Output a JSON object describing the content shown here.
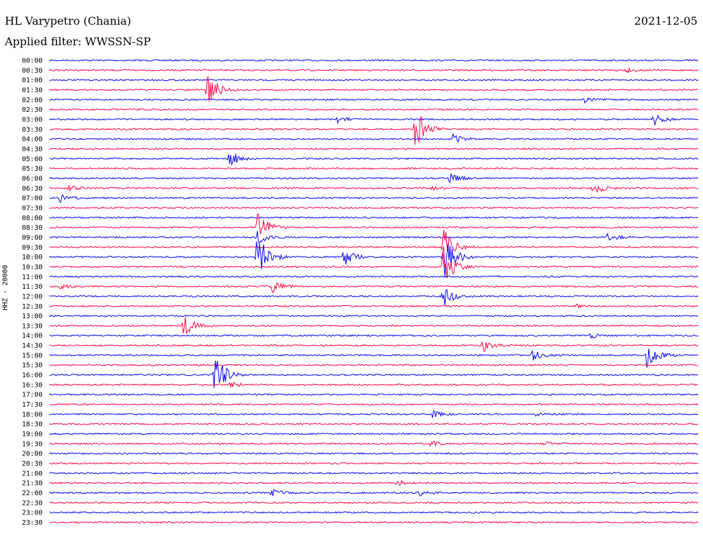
{
  "header": {
    "station": "HL Varypetro (Chania)",
    "date": "2021-12-05",
    "filter": "Applied filter: WWSSN-SP"
  },
  "colors": {
    "trace_a": "#0000ee",
    "trace_b": "#ff0040"
  },
  "chart_data": {
    "type": "line",
    "subtype": "helicorder",
    "ylabel": "HHZ - 20000",
    "y_tick_labels": [
      "00:00",
      "00:30",
      "01:00",
      "01:30",
      "02:00",
      "02:30",
      "03:00",
      "03:30",
      "04:00",
      "04:30",
      "05:00",
      "05:30",
      "06:00",
      "06:30",
      "07:00",
      "07:30",
      "08:00",
      "08:30",
      "09:00",
      "09:30",
      "10:00",
      "10:30",
      "11:00",
      "11:30",
      "12:00",
      "12:30",
      "13:00",
      "13:30",
      "14:00",
      "14:30",
      "15:00",
      "15:30",
      "16:00",
      "16:30",
      "17:00",
      "17:30",
      "18:00",
      "18:30",
      "19:00",
      "19:30",
      "20:00",
      "20:30",
      "21:00",
      "21:30",
      "22:00",
      "22:30",
      "23:00",
      "23:30"
    ],
    "x_range_minutes": [
      0,
      30
    ],
    "events": [
      {
        "row": 1,
        "minute": 26.6,
        "amp": 4
      },
      {
        "row": 3,
        "minute": 7.3,
        "amp": 28
      },
      {
        "row": 4,
        "minute": 24.7,
        "amp": 4
      },
      {
        "row": 6,
        "minute": 13.3,
        "amp": 5
      },
      {
        "row": 6,
        "minute": 27.9,
        "amp": 10
      },
      {
        "row": 7,
        "minute": 16.9,
        "amp": 35
      },
      {
        "row": 8,
        "minute": 18.6,
        "amp": 8
      },
      {
        "row": 10,
        "minute": 8.3,
        "amp": 14
      },
      {
        "row": 12,
        "minute": 18.5,
        "amp": 8
      },
      {
        "row": 13,
        "minute": 0.9,
        "amp": 4
      },
      {
        "row": 13,
        "minute": 17.6,
        "amp": 4
      },
      {
        "row": 13,
        "minute": 25.1,
        "amp": 10
      },
      {
        "row": 14,
        "minute": 0.5,
        "amp": 6
      },
      {
        "row": 15,
        "minute": 30.0,
        "amp": 8
      },
      {
        "row": 17,
        "minute": 9.6,
        "amp": 28
      },
      {
        "row": 18,
        "minute": 9.6,
        "amp": 12
      },
      {
        "row": 18,
        "minute": 25.8,
        "amp": 6
      },
      {
        "row": 19,
        "minute": 18.2,
        "amp": 30
      },
      {
        "row": 20,
        "minute": 9.6,
        "amp": 40
      },
      {
        "row": 20,
        "minute": 13.6,
        "amp": 14
      },
      {
        "row": 20,
        "minute": 18.2,
        "amp": 40
      },
      {
        "row": 21,
        "minute": 18.2,
        "amp": 30
      },
      {
        "row": 23,
        "minute": 0.5,
        "amp": 4
      },
      {
        "row": 23,
        "minute": 10.3,
        "amp": 10
      },
      {
        "row": 24,
        "minute": 18.2,
        "amp": 15
      },
      {
        "row": 25,
        "minute": 24.3,
        "amp": 4
      },
      {
        "row": 27,
        "minute": 6.2,
        "amp": 16
      },
      {
        "row": 28,
        "minute": 25.0,
        "amp": 4
      },
      {
        "row": 29,
        "minute": 20.0,
        "amp": 10
      },
      {
        "row": 30,
        "minute": 22.3,
        "amp": 8
      },
      {
        "row": 30,
        "minute": 27.6,
        "amp": 20
      },
      {
        "row": 31,
        "minute": 30.0,
        "amp": 5
      },
      {
        "row": 32,
        "minute": 7.6,
        "amp": 40
      },
      {
        "row": 33,
        "minute": 8.3,
        "amp": 5
      },
      {
        "row": 36,
        "minute": 17.7,
        "amp": 5
      },
      {
        "row": 36,
        "minute": 22.3,
        "amp": 3
      },
      {
        "row": 39,
        "minute": 17.6,
        "amp": 4
      },
      {
        "row": 39,
        "minute": 22.8,
        "amp": 4
      },
      {
        "row": 43,
        "minute": 16.1,
        "amp": 5
      },
      {
        "row": 44,
        "minute": 10.3,
        "amp": 7
      },
      {
        "row": 44,
        "minute": 17.1,
        "amp": 4
      }
    ]
  }
}
